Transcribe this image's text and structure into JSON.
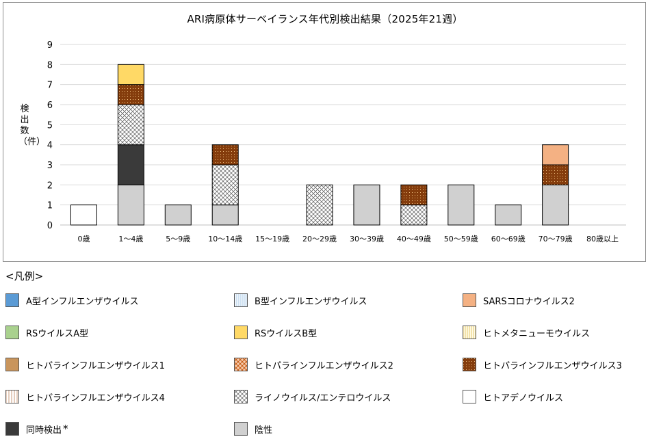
{
  "chart_data": {
    "type": "bar",
    "stacked": true,
    "title": "ARI病原体サーベイランス年代別検出結果（2025年21週）",
    "ylabel": "検出数（件）",
    "ylim": [
      0,
      9
    ],
    "yticks": [
      0,
      1,
      2,
      3,
      4,
      5,
      6,
      7,
      8,
      9
    ],
    "grid": true,
    "categories": [
      "0歳",
      "1～4歳",
      "5～9歳",
      "10～14歳",
      "15～19歳",
      "20～29歳",
      "30～39歳",
      "40～49歳",
      "50～59歳",
      "60～69歳",
      "70～79歳",
      "80歳以上"
    ],
    "series": [
      {
        "name": "陰性",
        "pattern": "negative",
        "values": [
          0,
          2,
          1,
          1,
          0,
          0,
          2,
          0,
          2,
          1,
          2,
          0
        ]
      },
      {
        "name": "ヒトアデノウイルス",
        "pattern": "adeno",
        "values": [
          1,
          0,
          0,
          0,
          0,
          0,
          0,
          0,
          0,
          0,
          0,
          0
        ]
      },
      {
        "name": "同時検出",
        "pattern": "simul",
        "values": [
          0,
          2,
          0,
          0,
          0,
          0,
          0,
          0,
          0,
          0,
          0,
          0
        ]
      },
      {
        "name": "ライノウイルス/エンテロウイルス",
        "pattern": "rhino",
        "values": [
          0,
          2,
          0,
          2,
          0,
          2,
          0,
          1,
          0,
          0,
          0,
          0
        ]
      },
      {
        "name": "ヒトパラインフルエンザウイルス3",
        "pattern": "hpiv3",
        "values": [
          0,
          1,
          0,
          1,
          0,
          0,
          0,
          1,
          0,
          0,
          1,
          0
        ]
      },
      {
        "name": "RSウイルスB型",
        "pattern": "rsvb",
        "values": [
          0,
          1,
          0,
          0,
          0,
          0,
          0,
          0,
          0,
          0,
          0,
          0
        ]
      },
      {
        "name": "SARSコロナウイルス2",
        "pattern": "sars",
        "values": [
          0,
          0,
          0,
          0,
          0,
          0,
          0,
          0,
          0,
          0,
          1,
          0
        ]
      }
    ]
  },
  "legend": {
    "title": "<凡例>",
    "items": [
      {
        "label": "A型インフルエンザウイルス",
        "pattern": "fluA"
      },
      {
        "label": "B型インフルエンザウイルス",
        "pattern": "fluB"
      },
      {
        "label": "SARSコロナウイルス2",
        "pattern": "sars"
      },
      {
        "label": "RSウイルスA型",
        "pattern": "rsva"
      },
      {
        "label": "RSウイルスB型",
        "pattern": "rsvb"
      },
      {
        "label": "ヒトメタニューモウイルス",
        "pattern": "hmpv"
      },
      {
        "label": "ヒトパラインフルエンザウイルス1",
        "pattern": "hpiv1"
      },
      {
        "label": "ヒトパラインフルエンザウイルス2",
        "pattern": "hpiv2"
      },
      {
        "label": "ヒトパラインフルエンザウイルス3",
        "pattern": "hpiv3"
      },
      {
        "label": "ヒトパラインフルエンザウイルス4",
        "pattern": "hpiv4"
      },
      {
        "label": "ライノウイルス/エンテロウイルス",
        "pattern": "rhino"
      },
      {
        "label": "ヒトアデノウイルス",
        "pattern": "adeno"
      },
      {
        "label": "同時検出",
        "pattern": "simul",
        "note": "*"
      },
      {
        "label": "陰性",
        "pattern": "negative"
      }
    ]
  },
  "colors": {
    "fluA": "#5b9bd5",
    "fluB": "#dce9f7",
    "sars": "#f4b183",
    "rsva": "#a9d18e",
    "rsvb": "#ffd966",
    "hmpv": "#fff2cc",
    "hpiv1": "#c9955c",
    "hpiv2": "#f8cbad",
    "hpiv3": "#843c0c",
    "hpiv4": "#ffffff",
    "rhino": "#ffffff",
    "adeno": "#ffffff",
    "simul": "#3a3a3a",
    "negative": "#d0d0d0"
  }
}
